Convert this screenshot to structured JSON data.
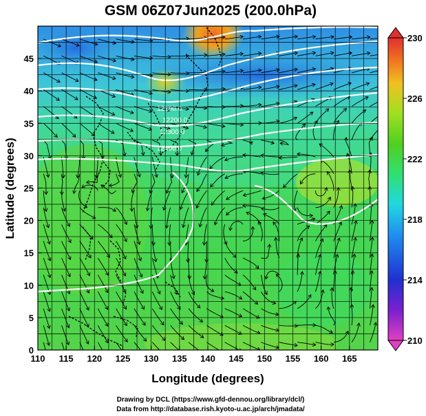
{
  "title": "GSM 06Z07Jun2025 (200.0hPa)",
  "xlabel": "Longitude (degrees)",
  "ylabel": "Latitude  (degrees)",
  "x_ticks": [
    "110",
    "115",
    "120",
    "125",
    "130",
    "135",
    "140",
    "145",
    "150",
    "155",
    "160",
    "165"
  ],
  "y_ticks": [
    "0",
    "5",
    "10",
    "15",
    "20",
    "25",
    "30",
    "35",
    "40",
    "45"
  ],
  "colorbar_ticks": [
    "230",
    "226",
    "222",
    "218",
    "214",
    "210"
  ],
  "contour_labels": [
    "12100.0",
    "12200.0",
    "12300.0",
    "12400.0"
  ],
  "credits": {
    "line1": "Drawing by DCL (https://www.gfd-dennou.org/library/dcl/)",
    "line2": "Data from http://database.rish.kyoto-u.ac.jp/arch/jmadata/"
  },
  "map": {
    "lon_range": [
      110,
      170
    ],
    "lat_range": [
      0,
      50
    ],
    "colorbar_range": [
      210,
      230
    ],
    "colormap": [
      "#e040c0",
      "#7a20d0",
      "#2030d0",
      "#2090f0",
      "#20d8e0",
      "#30e070",
      "#50d020",
      "#a0e020",
      "#f0c020",
      "#f07020",
      "#e03030"
    ]
  }
}
